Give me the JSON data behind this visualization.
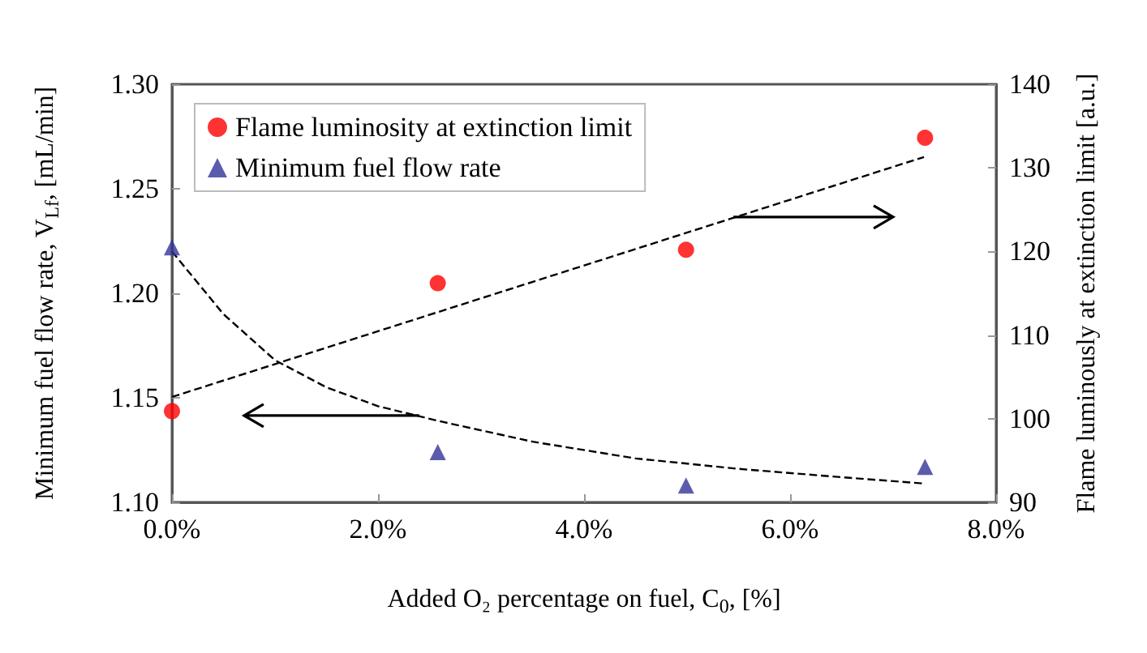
{
  "chart_data": {
    "type": "scatter",
    "xlabel": "Added O₂ percentage on fuel, C$_{0}$, [%]",
    "ylabel": "Minimum fuel flow rate, V$_{Lf}$, [mL/min]",
    "y2label": "Flame luminously at extinction limit [a.u.]",
    "xlim": [
      0,
      8
    ],
    "xticks": [
      {
        "value": 0,
        "label": "0.0%"
      },
      {
        "value": 2,
        "label": "2.0%"
      },
      {
        "value": 4,
        "label": "4.0%"
      },
      {
        "value": 6,
        "label": "6.0%"
      },
      {
        "value": 8,
        "label": "8.0%"
      }
    ],
    "ylim": [
      1.1,
      1.3
    ],
    "yticks": [
      {
        "value": 1.1,
        "label": "1.10"
      },
      {
        "value": 1.15,
        "label": "1.15"
      },
      {
        "value": 1.2,
        "label": "1.20"
      },
      {
        "value": 1.25,
        "label": "1.25"
      },
      {
        "value": 1.3,
        "label": "1.30"
      }
    ],
    "y2lim": [
      90,
      140
    ],
    "y2ticks": [
      90,
      100,
      110,
      120,
      130,
      140
    ],
    "grid": false,
    "legend": "top left",
    "series": [
      {
        "name": "Flame luminosity at extinction limit",
        "axis": "y2",
        "marker": "circle",
        "color": "#ff0000",
        "x": [
          0,
          2.58,
          4.99,
          7.31
        ],
        "values": [
          100.9,
          116.2,
          120.2,
          133.6
        ]
      },
      {
        "name": "Minimum fuel flow rate",
        "marker": "triangle",
        "color": "#333399",
        "x": [
          0,
          2.58,
          4.99,
          7.31
        ],
        "values": [
          1.222,
          1.124,
          1.108,
          1.117
        ]
      },
      {
        "type": "line",
        "axis": "y2",
        "marker": "none",
        "line_style": "dashed",
        "color": "#000000",
        "x": [
          0,
          7.3
        ],
        "values": [
          102.6,
          131.3
        ]
      },
      {
        "type": "line",
        "marker": "none",
        "line_style": "dashed",
        "color": "#000000",
        "x": [
          0,
          0.5,
          1.0,
          1.5,
          2.0,
          2.58,
          3.5,
          4.5,
          5.5,
          6.5,
          7.3
        ],
        "values": [
          1.22,
          1.19,
          1.168,
          1.155,
          1.146,
          1.139,
          1.129,
          1.121,
          1.116,
          1.112,
          1.109
        ]
      }
    ]
  }
}
